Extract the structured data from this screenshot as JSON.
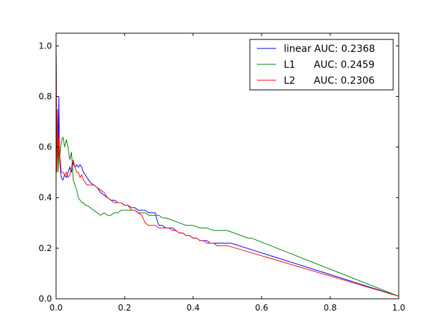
{
  "chart_data": {
    "type": "line",
    "title": "",
    "xlabel": "",
    "ylabel": "",
    "xlim": [
      0.0,
      1.0
    ],
    "ylim": [
      0.0,
      1.05
    ],
    "xticks": [
      "0.0",
      "0.2",
      "0.4",
      "0.6",
      "0.8",
      "1.0"
    ],
    "yticks": [
      "0.0",
      "0.2",
      "0.4",
      "0.6",
      "0.8",
      "1.0"
    ],
    "xtick_values": [
      0.0,
      0.2,
      0.4,
      0.6,
      0.8,
      1.0
    ],
    "ytick_values": [
      0.0,
      0.2,
      0.4,
      0.6,
      0.8,
      1.0
    ],
    "grid": false,
    "legend_position": "top-right",
    "series": [
      {
        "name": "linear",
        "legend_text": "linear AUC: 0.2368",
        "color": "#0000ff",
        "x": [
          0.0,
          0.002,
          0.004,
          0.006,
          0.008,
          0.01,
          0.015,
          0.02,
          0.025,
          0.03,
          0.035,
          0.04,
          0.045,
          0.05,
          0.055,
          0.06,
          0.065,
          0.07,
          0.075,
          0.08,
          0.085,
          0.09,
          0.1,
          0.11,
          0.12,
          0.13,
          0.14,
          0.15,
          0.16,
          0.17,
          0.18,
          0.19,
          0.2,
          0.21,
          0.22,
          0.23,
          0.24,
          0.25,
          0.26,
          0.27,
          0.28,
          0.29,
          0.295,
          0.3,
          0.31,
          0.32,
          0.33,
          0.34,
          0.35,
          0.36,
          0.37,
          0.38,
          0.39,
          0.4,
          0.41,
          0.42,
          0.43,
          0.44,
          0.45,
          0.46,
          0.47,
          0.48,
          0.49,
          0.5,
          0.51,
          1.0
        ],
        "y": [
          1.0,
          0.62,
          0.7,
          0.58,
          0.8,
          0.55,
          0.48,
          0.47,
          0.49,
          0.48,
          0.5,
          0.52,
          0.5,
          0.54,
          0.52,
          0.53,
          0.52,
          0.53,
          0.52,
          0.5,
          0.49,
          0.48,
          0.46,
          0.45,
          0.44,
          0.42,
          0.41,
          0.4,
          0.39,
          0.39,
          0.38,
          0.38,
          0.37,
          0.37,
          0.36,
          0.36,
          0.35,
          0.35,
          0.35,
          0.34,
          0.34,
          0.34,
          0.31,
          0.29,
          0.29,
          0.28,
          0.28,
          0.28,
          0.27,
          0.26,
          0.26,
          0.25,
          0.25,
          0.24,
          0.24,
          0.23,
          0.23,
          0.23,
          0.22,
          0.22,
          0.22,
          0.22,
          0.22,
          0.22,
          0.22,
          0.01
        ]
      },
      {
        "name": "L1",
        "legend_text": "L1      AUC: 0.2459",
        "color": "#008000",
        "x": [
          0.0,
          0.002,
          0.004,
          0.006,
          0.008,
          0.01,
          0.015,
          0.02,
          0.025,
          0.03,
          0.035,
          0.04,
          0.045,
          0.05,
          0.055,
          0.06,
          0.065,
          0.07,
          0.075,
          0.08,
          0.085,
          0.09,
          0.1,
          0.11,
          0.12,
          0.13,
          0.14,
          0.15,
          0.16,
          0.17,
          0.18,
          0.19,
          0.2,
          0.21,
          0.22,
          0.23,
          0.24,
          0.25,
          0.26,
          0.27,
          0.28,
          0.29,
          0.3,
          0.31,
          0.32,
          0.34,
          0.36,
          0.38,
          0.4,
          0.42,
          0.44,
          0.46,
          0.48,
          0.5,
          0.52,
          0.54,
          0.56,
          0.57,
          1.0
        ],
        "y": [
          0.97,
          0.55,
          0.62,
          0.5,
          0.6,
          0.55,
          0.62,
          0.64,
          0.6,
          0.63,
          0.6,
          0.55,
          0.58,
          0.47,
          0.45,
          0.43,
          0.4,
          0.39,
          0.38,
          0.38,
          0.37,
          0.37,
          0.36,
          0.35,
          0.34,
          0.33,
          0.34,
          0.33,
          0.33,
          0.34,
          0.34,
          0.35,
          0.35,
          0.35,
          0.35,
          0.35,
          0.34,
          0.34,
          0.34,
          0.33,
          0.33,
          0.33,
          0.33,
          0.32,
          0.32,
          0.31,
          0.3,
          0.29,
          0.29,
          0.28,
          0.28,
          0.27,
          0.27,
          0.27,
          0.26,
          0.25,
          0.24,
          0.24,
          0.01
        ]
      },
      {
        "name": "L2",
        "legend_text": "L2      AUC: 0.2306",
        "color": "#ff0000",
        "x": [
          0.0,
          0.002,
          0.004,
          0.006,
          0.008,
          0.01,
          0.015,
          0.02,
          0.025,
          0.03,
          0.035,
          0.04,
          0.045,
          0.05,
          0.055,
          0.06,
          0.065,
          0.07,
          0.075,
          0.08,
          0.085,
          0.09,
          0.1,
          0.11,
          0.12,
          0.13,
          0.14,
          0.15,
          0.16,
          0.17,
          0.18,
          0.19,
          0.2,
          0.21,
          0.22,
          0.23,
          0.24,
          0.25,
          0.26,
          0.27,
          0.28,
          0.29,
          0.3,
          0.31,
          0.32,
          0.33,
          0.34,
          0.35,
          0.36,
          0.37,
          0.38,
          0.39,
          0.4,
          0.41,
          0.42,
          0.43,
          0.44,
          0.45,
          0.46,
          0.47,
          0.48,
          0.49,
          0.5,
          1.0
        ],
        "y": [
          0.98,
          0.5,
          0.75,
          0.55,
          0.65,
          0.58,
          0.5,
          0.5,
          0.49,
          0.5,
          0.48,
          0.49,
          0.52,
          0.55,
          0.52,
          0.5,
          0.5,
          0.48,
          0.49,
          0.47,
          0.46,
          0.45,
          0.45,
          0.45,
          0.44,
          0.43,
          0.42,
          0.4,
          0.39,
          0.38,
          0.38,
          0.38,
          0.37,
          0.37,
          0.35,
          0.35,
          0.34,
          0.33,
          0.3,
          0.29,
          0.29,
          0.29,
          0.28,
          0.28,
          0.28,
          0.28,
          0.27,
          0.27,
          0.26,
          0.26,
          0.25,
          0.25,
          0.24,
          0.24,
          0.23,
          0.23,
          0.22,
          0.22,
          0.22,
          0.21,
          0.21,
          0.21,
          0.21,
          0.01
        ]
      }
    ]
  }
}
